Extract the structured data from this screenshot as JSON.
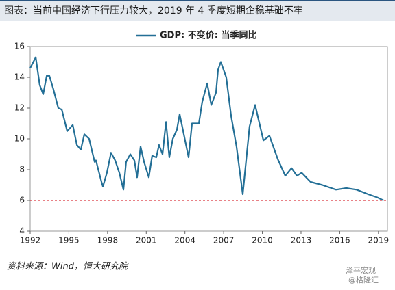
{
  "chart_data": {
    "type": "line",
    "title": "图表：当前中国经济下行压力较大，2019 年 4 季度短期企稳基础不牢",
    "source": "资料来源：Wind，恒大研究院",
    "watermark": [
      "泽平宏观",
      "@格隆汇"
    ],
    "x": [
      1992,
      1992.43,
      1992.74,
      1993.01,
      1993.28,
      1993.49,
      1993.81,
      1994.18,
      1994.45,
      1994.87,
      1995.3,
      1995.62,
      1995.93,
      1996.2,
      1996.57,
      1997.0,
      1997.1,
      1997.53,
      1997.64,
      1997.95,
      1998.27,
      1998.59,
      1998.91,
      1999.23,
      1999.44,
      1999.76,
      2000.08,
      2000.29,
      2000.56,
      2000.83,
      2001.2,
      2001.46,
      2001.78,
      2001.99,
      2002.26,
      2002.53,
      2002.79,
      2003.06,
      2003.38,
      2003.59,
      2004.28,
      2004.55,
      2005.08,
      2005.34,
      2005.72,
      2006.04,
      2006.41,
      2006.57,
      2006.78,
      2007.2,
      2007.58,
      2008.0,
      2008.48,
      2009.01,
      2009.44,
      2010.08,
      2010.55,
      2011.19,
      2011.78,
      2012.26,
      2012.68,
      2013.05,
      2013.74,
      2014.65,
      2015.71,
      2016.51,
      2017.31,
      2018.21,
      2018.9,
      2019.4
    ],
    "series": [
      {
        "name": "GDP: 不变价: 当季同比",
        "color": "#236f96",
        "values": [
          14.6,
          15.3,
          13.5,
          12.9,
          14.1,
          14.1,
          13.2,
          12.0,
          11.9,
          10.5,
          10.9,
          9.6,
          9.3,
          10.3,
          10.0,
          8.5,
          8.6,
          7.2,
          6.9,
          7.8,
          9.1,
          8.6,
          7.8,
          6.7,
          8.5,
          9.0,
          8.6,
          7.5,
          9.5,
          8.5,
          7.5,
          8.9,
          8.8,
          9.6,
          9.0,
          11.1,
          8.8,
          10.0,
          10.6,
          11.6,
          8.8,
          11.0,
          11.0,
          12.4,
          13.6,
          12.2,
          13.0,
          14.5,
          15.0,
          14.0,
          11.5,
          9.5,
          6.4,
          10.8,
          12.2,
          9.9,
          10.2,
          8.7,
          7.6,
          8.1,
          7.6,
          7.8,
          7.2,
          7.0,
          6.7,
          6.8,
          6.7,
          6.4,
          6.2,
          6.0
        ]
      }
    ],
    "reference_line": {
      "value": 6,
      "color": "#d9363e"
    },
    "xlim": [
      1992,
      2019.7
    ],
    "xticks": [
      1992,
      1995,
      1998,
      2001,
      2004,
      2007,
      2010,
      2013,
      2016,
      2019
    ],
    "ylim": [
      4,
      16
    ],
    "yticks": [
      4,
      6,
      8,
      10,
      12,
      14,
      16
    ],
    "legend": "top"
  }
}
